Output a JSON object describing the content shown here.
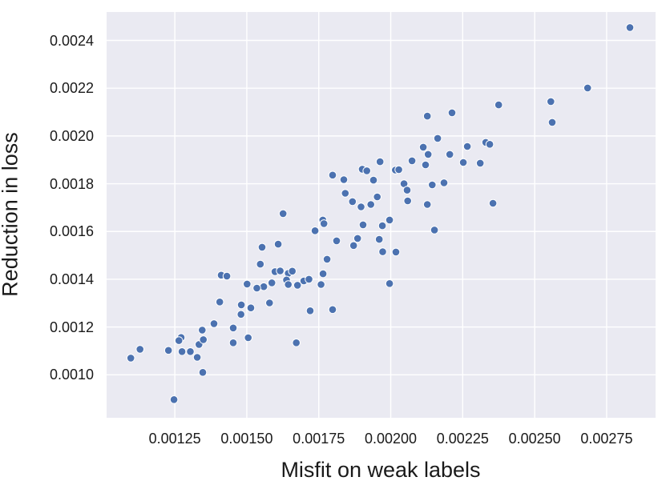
{
  "chart_data": {
    "type": "scatter",
    "title": "",
    "xlabel": "Misfit on weak labels",
    "ylabel": "Reduction in loss",
    "xlim": [
      0.001013,
      0.00292
    ],
    "ylim": [
      0.00082,
      0.002519
    ],
    "x_ticks": [
      0.00125,
      0.0015,
      0.00175,
      0.002,
      0.00225,
      0.0025,
      0.00275
    ],
    "x_tick_labels": [
      "0.00125",
      "0.00150",
      "0.00175",
      "0.00200",
      "0.00225",
      "0.00250",
      "0.00275"
    ],
    "y_ticks": [
      0.001,
      0.0012,
      0.0014,
      0.0016,
      0.0018,
      0.002,
      0.0022,
      0.0024
    ],
    "y_tick_labels": [
      "0.0010",
      "0.0012",
      "0.0014",
      "0.0016",
      "0.0018",
      "0.0020",
      "0.0022",
      "0.0024"
    ],
    "grid": true,
    "legend": false,
    "marker_color": "#4c72b0",
    "marker_edge_color": "#ffffff",
    "plot_background": "#eaeaf2",
    "gridline_color": "#ffffff",
    "points": [
      [
        0.002831,
        0.002454
      ],
      [
        0.002684,
        0.002201
      ],
      [
        0.002556,
        0.002144
      ],
      [
        0.002375,
        0.00213
      ],
      [
        0.002561,
        0.002057
      ],
      [
        0.00233,
        0.001973
      ],
      [
        0.002344,
        0.001965
      ],
      [
        0.002311,
        0.001886
      ],
      [
        0.002355,
        0.001718
      ],
      [
        0.002127,
        0.002083
      ],
      [
        0.002213,
        0.002097
      ],
      [
        0.002163,
        0.00199
      ],
      [
        0.002113,
        0.001953
      ],
      [
        0.00213,
        0.001923
      ],
      [
        0.002266,
        0.001956
      ],
      [
        0.002205,
        0.001923
      ],
      [
        0.002074,
        0.001896
      ],
      [
        0.002121,
        0.001879
      ],
      [
        0.002252,
        0.001889
      ],
      [
        0.001963,
        0.001892
      ],
      [
        0.001901,
        0.001861
      ],
      [
        0.001917,
        0.001854
      ],
      [
        0.002016,
        0.001857
      ],
      [
        0.002028,
        0.001859
      ],
      [
        0.001798,
        0.001836
      ],
      [
        0.001837,
        0.001817
      ],
      [
        0.00194,
        0.001815
      ],
      [
        0.002046,
        0.0018
      ],
      [
        0.002057,
        0.001773
      ],
      [
        0.002144,
        0.001795
      ],
      [
        0.002185,
        0.001804
      ],
      [
        0.001842,
        0.00176
      ],
      [
        0.001867,
        0.001725
      ],
      [
        0.001897,
        0.001703
      ],
      [
        0.001953,
        0.001745
      ],
      [
        0.001931,
        0.001713
      ],
      [
        0.002059,
        0.001728
      ],
      [
        0.002127,
        0.001713
      ],
      [
        0.001764,
        0.001648
      ],
      [
        0.001768,
        0.001633
      ],
      [
        0.001737,
        0.001603
      ],
      [
        0.001904,
        0.001628
      ],
      [
        0.001971,
        0.001624
      ],
      [
        0.001996,
        0.001648
      ],
      [
        0.002152,
        0.001606
      ],
      [
        0.001812,
        0.001561
      ],
      [
        0.001885,
        0.001571
      ],
      [
        0.001871,
        0.001541
      ],
      [
        0.00196,
        0.001567
      ],
      [
        0.001972,
        0.001515
      ],
      [
        0.002018,
        0.001514
      ],
      [
        0.001779,
        0.001484
      ],
      [
        0.001765,
        0.001423
      ],
      [
        0.001758,
        0.001378
      ],
      [
        0.001996,
        0.001382
      ],
      [
        0.00172,
        0.001268
      ],
      [
        0.001798,
        0.001273
      ],
      [
        0.001672,
        0.001134
      ],
      [
        0.001598,
        0.001432
      ],
      [
        0.001616,
        0.001435
      ],
      [
        0.001644,
        0.001425
      ],
      [
        0.001658,
        0.001434
      ],
      [
        0.001638,
        0.001397
      ],
      [
        0.001644,
        0.001378
      ],
      [
        0.001587,
        0.001385
      ],
      [
        0.001559,
        0.001369
      ],
      [
        0.001535,
        0.001363
      ],
      [
        0.001676,
        0.001375
      ],
      [
        0.001698,
        0.001393
      ],
      [
        0.001716,
        0.0014
      ],
      [
        0.001626,
        0.001675
      ],
      [
        0.001553,
        0.001534
      ],
      [
        0.001609,
        0.001547
      ],
      [
        0.001547,
        0.001463
      ],
      [
        0.001411,
        0.001417
      ],
      [
        0.001431,
        0.001413
      ],
      [
        0.001501,
        0.00138
      ],
      [
        0.001406,
        0.001305
      ],
      [
        0.001481,
        0.001293
      ],
      [
        0.001514,
        0.00128
      ],
      [
        0.00148,
        0.001253
      ],
      [
        0.001579,
        0.001301
      ],
      [
        0.001386,
        0.001214
      ],
      [
        0.001345,
        0.001187
      ],
      [
        0.001453,
        0.001196
      ],
      [
        0.001272,
        0.001156
      ],
      [
        0.001264,
        0.001143
      ],
      [
        0.001228,
        0.001102
      ],
      [
        0.001275,
        0.001097
      ],
      [
        0.001304,
        0.001097
      ],
      [
        0.001328,
        0.001073
      ],
      [
        0.001334,
        0.001127
      ],
      [
        0.001349,
        0.001147
      ],
      [
        0.001129,
        0.001107
      ],
      [
        0.001097,
        0.00107
      ],
      [
        0.001347,
        0.00101
      ],
      [
        0.001247,
        0.000896
      ],
      [
        0.001505,
        0.001155
      ],
      [
        0.001453,
        0.001134
      ]
    ]
  }
}
